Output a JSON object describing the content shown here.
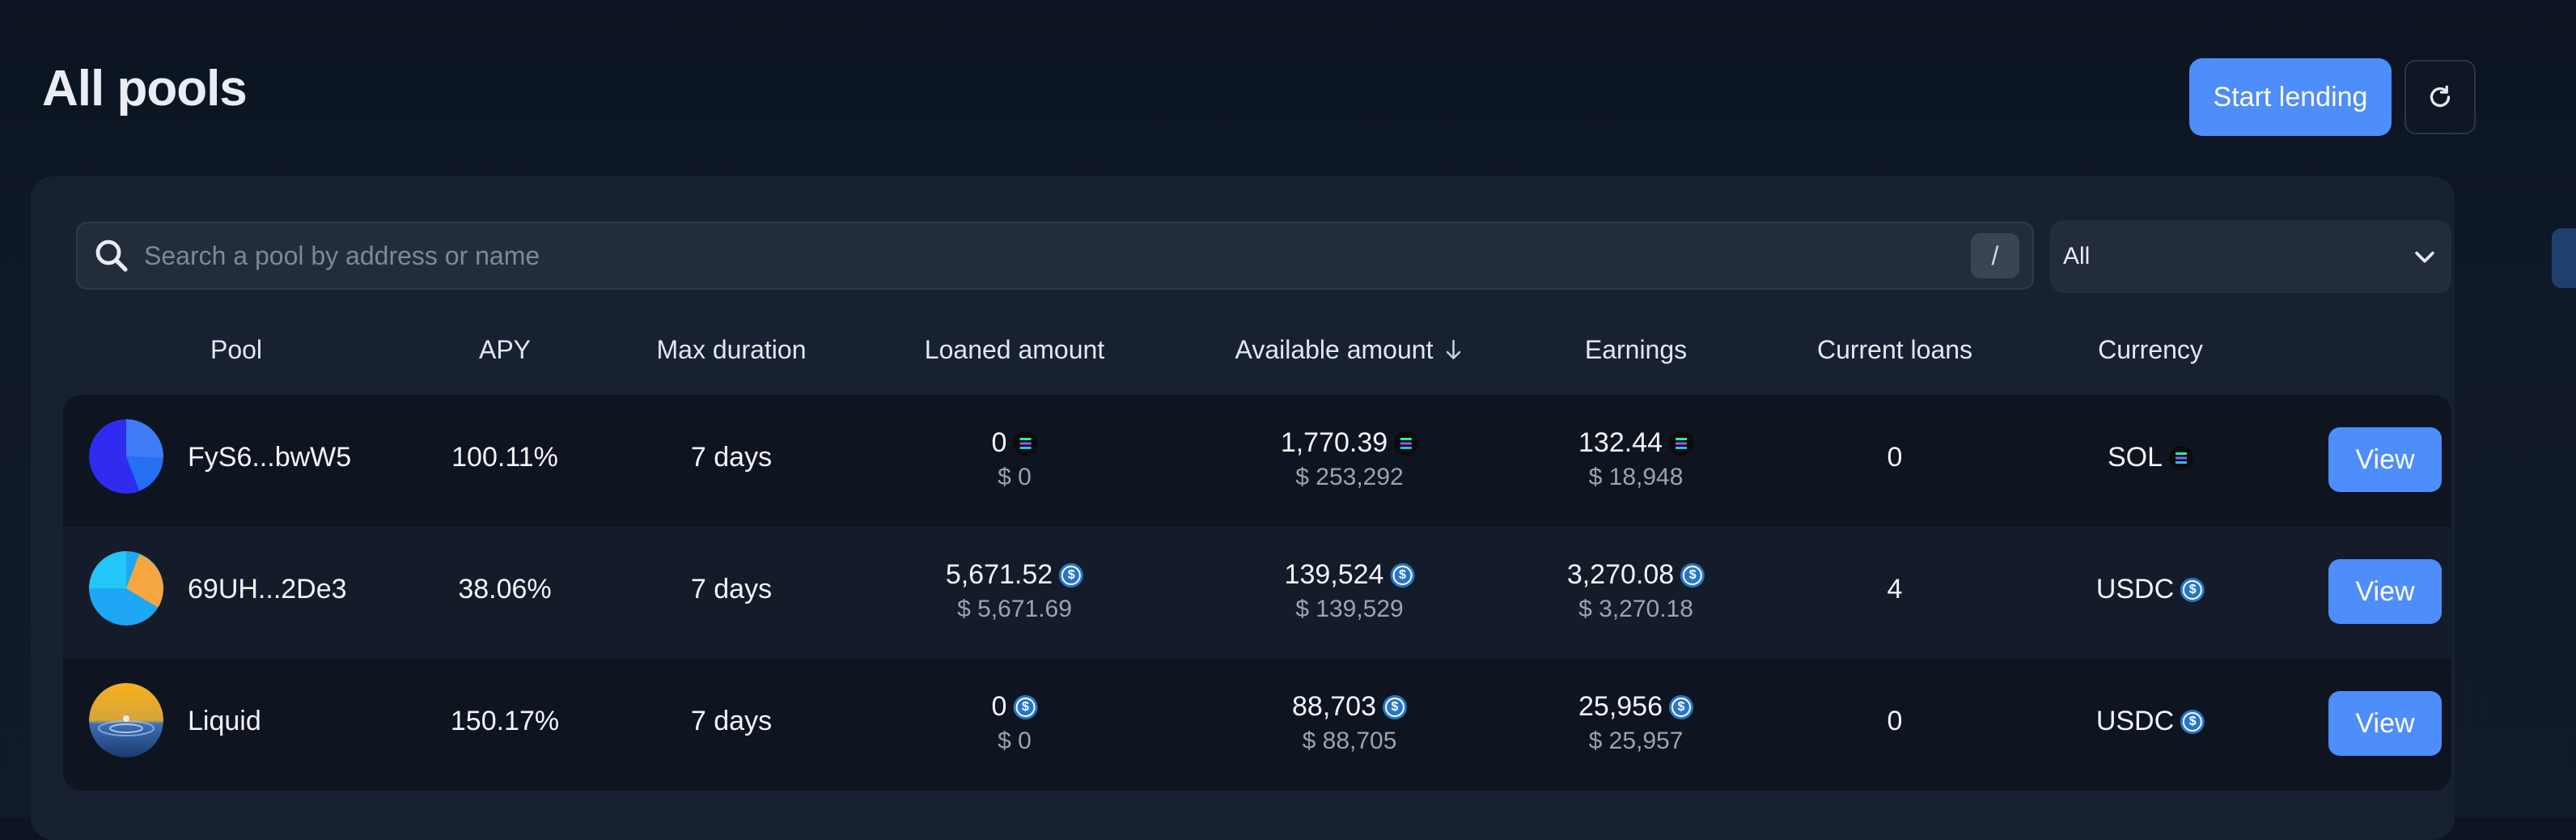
{
  "header": {
    "title": "All pools",
    "start_lending_label": "Start lending"
  },
  "search": {
    "placeholder": "Search a pool by address or name",
    "shortcut": "/"
  },
  "filter": {
    "selected": "All"
  },
  "columns": {
    "pool": "Pool",
    "apy": "APY",
    "max_duration": "Max duration",
    "loaned_amount": "Loaned amount",
    "available_amount": "Available amount",
    "earnings": "Earnings",
    "current_loans": "Current loans",
    "currency": "Currency"
  },
  "rows": [
    {
      "pool": "FyS6...bwW5",
      "apy": "100.11%",
      "max_duration": "7 days",
      "loaned": "0",
      "loaned_usd": "$ 0",
      "available": "1,770.39",
      "available_usd": "$ 253,292",
      "earnings": "132.44",
      "earnings_usd": "$ 18,948",
      "current_loans": "0",
      "currency": "SOL",
      "currency_icon": "sol-icon",
      "view_label": "View"
    },
    {
      "pool": "69UH...2De3",
      "apy": "38.06%",
      "max_duration": "7 days",
      "loaned": "5,671.52",
      "loaned_usd": "$ 5,671.69",
      "available": "139,524",
      "available_usd": "$ 139,529",
      "earnings": "3,270.08",
      "earnings_usd": "$ 3,270.18",
      "current_loans": "4",
      "currency": "USDC",
      "currency_icon": "usdc-icon",
      "view_label": "View"
    },
    {
      "pool": "Liquid",
      "apy": "150.17%",
      "max_duration": "7 days",
      "loaned": "0",
      "loaned_usd": "$ 0",
      "available": "88,703",
      "available_usd": "$ 88,705",
      "earnings": "25,956",
      "earnings_usd": "$ 25,957",
      "current_loans": "0",
      "currency": "USDC",
      "currency_icon": "usdc-icon",
      "view_label": "View"
    }
  ],
  "colors": {
    "accent": "#4d8dfc",
    "background": "#0f1826",
    "panel": "#182132"
  }
}
